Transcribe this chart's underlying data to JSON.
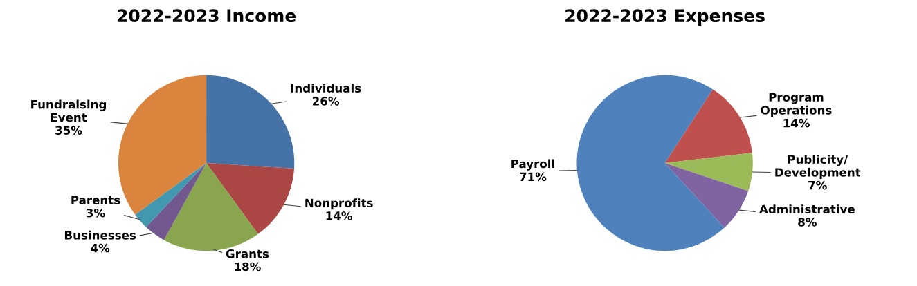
{
  "chart_data": [
    {
      "type": "pie",
      "title": "2022-2023 Income",
      "categories": [
        "Individuals",
        "Nonprofits",
        "Grants",
        "Businesses",
        "Parents",
        "Fundraising Event"
      ],
      "values": [
        26,
        14,
        18,
        4,
        3,
        35
      ],
      "colors": [
        "#4572a7",
        "#aa4643",
        "#89a54e",
        "#71588f",
        "#4198af",
        "#db843d"
      ],
      "value_labels": [
        "26%",
        "14%",
        "18%",
        "4%",
        "3%",
        "35%"
      ]
    },
    {
      "type": "pie",
      "title": "2022-2023 Expenses",
      "categories": [
        "Program Operations",
        "Publicity/Development",
        "Administrative",
        "Payroll"
      ],
      "values": [
        14,
        7,
        8,
        71
      ],
      "colors": [
        "#c0504d",
        "#9bbb59",
        "#8064a2",
        "#4f81bd"
      ],
      "value_labels": [
        "14%",
        "7%",
        "8%",
        "71%"
      ]
    }
  ]
}
